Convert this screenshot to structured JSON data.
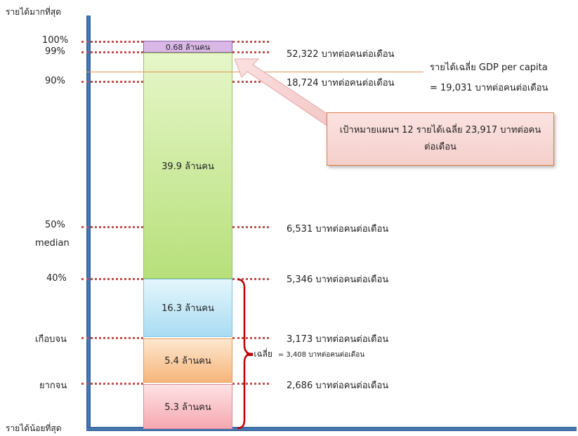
{
  "axis": {
    "top_label": "รายได้มากที่สุด",
    "bottom_label": "รายได้น้อยที่สุด"
  },
  "levels": [
    {
      "left": "100%",
      "right": ""
    },
    {
      "left": "99%",
      "right": "52,322 บาทต่อคนต่อเดือน"
    },
    {
      "left": "90%",
      "right": "18,724 บาทต่อคนต่อเดือน"
    },
    {
      "left": "50%",
      "sub": "median",
      "right": "6,531 บาทต่อคนต่อเดือน"
    },
    {
      "left": "40%",
      "right": "5,346 บาทต่อคนต่อเดือน"
    },
    {
      "left": "เกือบจน",
      "right": "3,173 บาทต่อคนต่อเดือน"
    },
    {
      "left": "ยากจน",
      "right": "2,686 บาทต่อคนต่อเดือน"
    }
  ],
  "segments": [
    {
      "label": "0.68 ล้านคน",
      "color": "#d9b8e6"
    },
    {
      "label": "39.9 ล้านคน",
      "color": "#c8eb94"
    },
    {
      "label": "16.3 ล้านคน",
      "color": "#b9e6f6"
    },
    {
      "label": "5.4 ล้านคน",
      "color": "#f9c89a"
    },
    {
      "label": "5.3 ล้านคน",
      "color": "#f8b8bf"
    }
  ],
  "gdp": {
    "line1": "รายได้เฉลี่ย GDP per capita",
    "line2": "= 19,031 บาทต่อคนต่อเดือน"
  },
  "callout": {
    "text": "เป้าหมายแผนฯ 12 รายได้เฉลี่ย 23,917 บาทต่อคนต่อเดือน"
  },
  "bracket": {
    "prefix": "เฉลี่ย",
    "value": "= 3,408 บาทต่อคนต่อเดือน"
  }
}
